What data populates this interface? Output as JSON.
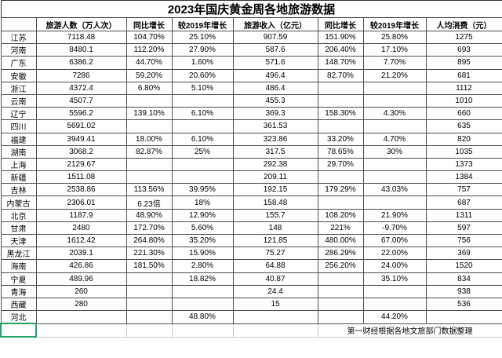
{
  "title": "2023年国庆黄金周各地旅游数据",
  "table": {
    "columns": [
      "",
      "旅游人数（万人次）",
      "同比增长",
      "较2019年增长",
      "旅游收入（亿元）",
      "同比增长",
      "较2019年增长",
      "人均消费（元）"
    ],
    "rows": [
      {
        "region": "江苏",
        "values": [
          "7118.48",
          "104.70%",
          "25.10%",
          "907.59",
          "151.90%",
          "25.80%",
          "1275"
        ]
      },
      {
        "region": "河南",
        "values": [
          "8480.1",
          "112.20%",
          "27.90%",
          "587.6",
          "206.40%",
          "17.10%",
          "693"
        ]
      },
      {
        "region": "广东",
        "values": [
          "6386.2",
          "44.70%",
          "1.60%",
          "571.6",
          "148.70%",
          "7.70%",
          "895"
        ]
      },
      {
        "region": "安徽",
        "values": [
          "7286",
          "59.20%",
          "20.60%",
          "496.4",
          "82.70%",
          "21.20%",
          "681"
        ]
      },
      {
        "region": "浙江",
        "values": [
          "4372.4",
          "6.80%",
          "5.10%",
          "486.4",
          "",
          "",
          "1112"
        ]
      },
      {
        "region": "云南",
        "values": [
          "4507.7",
          "",
          "",
          "455.3",
          "",
          "",
          "1010"
        ]
      },
      {
        "region": "辽宁",
        "values": [
          "5596.2",
          "139.10%",
          "6.10%",
          "369.3",
          "158.30%",
          "4.30%",
          "660"
        ]
      },
      {
        "region": "四川",
        "values": [
          "5691.02",
          "",
          "",
          "361.53",
          "",
          "",
          "635"
        ]
      },
      {
        "region": "福建",
        "values": [
          "3949.41",
          "18.00%",
          "6.10%",
          "323.86",
          "33.20%",
          "4.70%",
          "820"
        ]
      },
      {
        "region": "湖南",
        "values": [
          "3068.2",
          "82.87%",
          "25%",
          "317.5",
          "78.65%",
          "30%",
          "1035"
        ]
      },
      {
        "region": "上海",
        "values": [
          "2129.67",
          "",
          "",
          "292.38",
          "29.70%",
          "",
          "1373"
        ]
      },
      {
        "region": "新疆",
        "values": [
          "1511.08",
          "",
          "",
          "209.11",
          "",
          "",
          "1384"
        ]
      },
      {
        "region": "吉林",
        "values": [
          "2538.86",
          "113.56%",
          "39.95%",
          "192.15",
          "179.29%",
          "43.03%",
          "757"
        ]
      },
      {
        "region": "内蒙古",
        "values": [
          "2306.01",
          "6.23倍",
          "18%",
          "158.48",
          "",
          "",
          "687"
        ]
      },
      {
        "region": "北京",
        "values": [
          "1187.9",
          "48.90%",
          "12.90%",
          "155.7",
          "108.20%",
          "21.90%",
          "1311"
        ]
      },
      {
        "region": "甘肃",
        "values": [
          "2480",
          "172.70%",
          "5.60%",
          "148",
          "221%",
          "-9.70%",
          "597"
        ]
      },
      {
        "region": "天津",
        "values": [
          "1612.42",
          "264.80%",
          "35.20%",
          "121.85",
          "480.00%",
          "67.00%",
          "756"
        ]
      },
      {
        "region": "黑龙江",
        "values": [
          "2039.1",
          "221.30%",
          "15.90%",
          "75.27",
          "286.29%",
          "22.00%",
          "369"
        ]
      },
      {
        "region": "海南",
        "values": [
          "426.86",
          "181.50%",
          "2.80%",
          "64.88",
          "256.20%",
          "24.00%",
          "1520"
        ]
      },
      {
        "region": "宁夏",
        "values": [
          "489.96",
          "",
          "18.82%",
          "40.87",
          "",
          "35.10%",
          "834"
        ]
      },
      {
        "region": "青海",
        "values": [
          "260",
          "",
          "",
          "24.4",
          "",
          "",
          "938"
        ]
      },
      {
        "region": "西藏",
        "values": [
          "280",
          "",
          "",
          "15",
          "",
          "",
          "536"
        ]
      },
      {
        "region": "河北",
        "values": [
          "",
          "",
          "48.80%",
          "",
          "",
          "44.20%",
          ""
        ]
      }
    ]
  },
  "footer": {
    "source": "第一财经根据各地文旅部门数据整理"
  },
  "colors": {
    "selection_green": "#21a366",
    "border_dark": "#4d4d4d",
    "grid_light": "#c9c9c9",
    "background": "#ffffff",
    "text": "#000000"
  }
}
